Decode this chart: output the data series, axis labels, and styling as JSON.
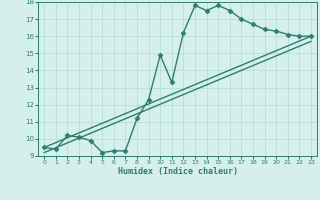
{
  "xlabel": "Humidex (Indice chaleur)",
  "xlim": [
    -0.5,
    23.5
  ],
  "ylim": [
    9,
    18
  ],
  "yticks": [
    9,
    10,
    11,
    12,
    13,
    14,
    15,
    16,
    17,
    18
  ],
  "xticks": [
    0,
    1,
    2,
    3,
    4,
    5,
    6,
    7,
    8,
    9,
    10,
    11,
    12,
    13,
    14,
    15,
    16,
    17,
    18,
    19,
    20,
    21,
    22,
    23
  ],
  "xtick_labels": [
    "0",
    "1",
    "2",
    "3",
    "4",
    "5",
    "6",
    "7",
    "8",
    "9",
    "10",
    "11",
    "12",
    "13",
    "14",
    "15",
    "16",
    "17",
    "18",
    "19",
    "20",
    "21",
    "22",
    "23"
  ],
  "main_x": [
    0,
    1,
    2,
    3,
    4,
    5,
    6,
    7,
    8,
    9,
    10,
    11,
    12,
    13,
    14,
    15,
    16,
    17,
    18,
    19,
    20,
    21,
    22,
    23
  ],
  "main_y": [
    9.5,
    9.4,
    10.2,
    10.1,
    9.9,
    9.2,
    9.3,
    9.3,
    11.2,
    12.3,
    14.9,
    13.3,
    16.2,
    17.8,
    17.5,
    17.8,
    17.5,
    17.0,
    16.7,
    16.4,
    16.3,
    16.1,
    16.0,
    16.0
  ],
  "line_color": "#2E7D6E",
  "bg_color": "#D5F0EC",
  "grid_color": "#B8DDD8",
  "marker": "D",
  "marker_size": 2.5,
  "line_width": 1.0,
  "trend1_x": [
    0,
    23
  ],
  "trend1_y": [
    9.5,
    16.0
  ],
  "trend2_x": [
    0,
    23
  ],
  "trend2_y": [
    9.2,
    15.7
  ]
}
